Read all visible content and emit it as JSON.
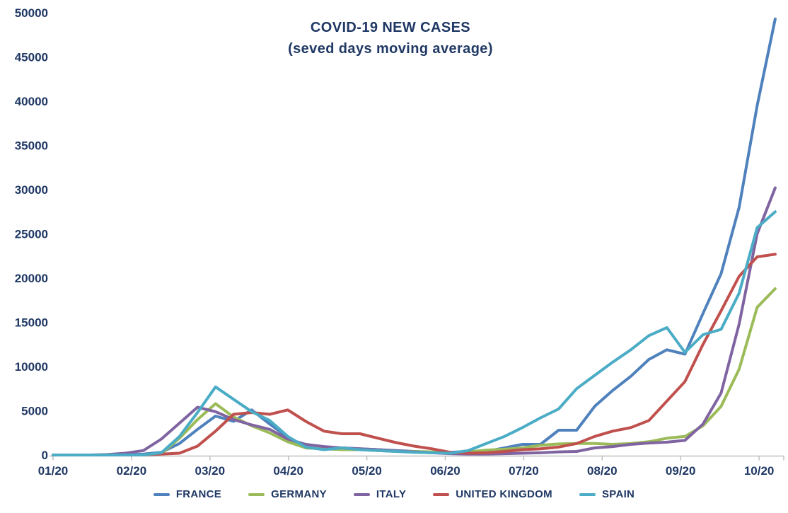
{
  "chart_data": {
    "type": "line",
    "title": "COVID-19 NEW CASES",
    "subtitle": "(seved days moving average)",
    "x_tick_labels": [
      "01/20",
      "02/20",
      "03/20",
      "04/20",
      "05/20",
      "06/20",
      "07/20",
      "08/20",
      "09/20",
      "10/20"
    ],
    "y_ticks": [
      0,
      5000,
      10000,
      15000,
      20000,
      25000,
      30000,
      35000,
      40000,
      45000,
      50000
    ],
    "ylim": [
      0,
      50000
    ],
    "grid": "none",
    "legend_position": "bottom",
    "axis_color": "#BFBFBF",
    "text_color": "#1F3864",
    "x_sampling": "weekly points from 01/20 to mid 10/20",
    "series": [
      {
        "name": "FRANCE",
        "color": "#4F81BD",
        "values": [
          0,
          0,
          0,
          0,
          0,
          100,
          300,
          1300,
          2900,
          4400,
          3800,
          5100,
          3500,
          2000,
          800,
          700,
          800,
          700,
          600,
          500,
          400,
          300,
          300,
          400,
          400,
          800,
          1200,
          1200,
          2800,
          2800,
          5500,
          7300,
          8900,
          10800,
          11900,
          11400,
          16000,
          20500,
          28000,
          39500,
          49300
        ]
      },
      {
        "name": "GERMANY",
        "color": "#9BBB59",
        "values": [
          0,
          0,
          0,
          0,
          0,
          0,
          150,
          1900,
          4000,
          5800,
          4300,
          3300,
          2500,
          1500,
          800,
          700,
          600,
          600,
          500,
          400,
          400,
          350,
          250,
          350,
          550,
          650,
          800,
          1100,
          1250,
          1300,
          1300,
          1200,
          1300,
          1500,
          1900,
          2100,
          3300,
          5500,
          9700,
          16700,
          18800
        ]
      },
      {
        "name": "ITALY",
        "color": "#8064A2",
        "values": [
          0,
          0,
          0,
          50,
          200,
          500,
          1800,
          3600,
          5400,
          4900,
          4000,
          3400,
          2900,
          1800,
          1200,
          950,
          800,
          700,
          600,
          450,
          350,
          250,
          150,
          100,
          100,
          150,
          200,
          250,
          350,
          400,
          800,
          950,
          1200,
          1350,
          1450,
          1650,
          3500,
          7000,
          14800,
          25000,
          30200
        ]
      },
      {
        "name": "UNITED KINGDOM",
        "color": "#C0504D",
        "values": [
          0,
          0,
          0,
          0,
          0,
          0,
          100,
          200,
          1000,
          2700,
          4600,
          4800,
          4600,
          5100,
          3800,
          2700,
          2400,
          2400,
          1900,
          1400,
          1000,
          700,
          300,
          200,
          250,
          400,
          600,
          700,
          900,
          1300,
          2100,
          2700,
          3100,
          3900,
          6100,
          8300,
          12500,
          16300,
          20200,
          22400,
          22700
        ]
      },
      {
        "name": "SPAIN",
        "color": "#4BACC6",
        "values": [
          0,
          0,
          0,
          0,
          0,
          0,
          250,
          2100,
          4800,
          7700,
          6300,
          4900,
          3900,
          2100,
          900,
          600,
          800,
          600,
          500,
          400,
          300,
          250,
          200,
          500,
          1300,
          2100,
          3100,
          4200,
          5200,
          7500,
          9000,
          10500,
          11900,
          13500,
          14400,
          11600,
          13600,
          14200,
          18300,
          25700,
          27500
        ]
      }
    ]
  }
}
